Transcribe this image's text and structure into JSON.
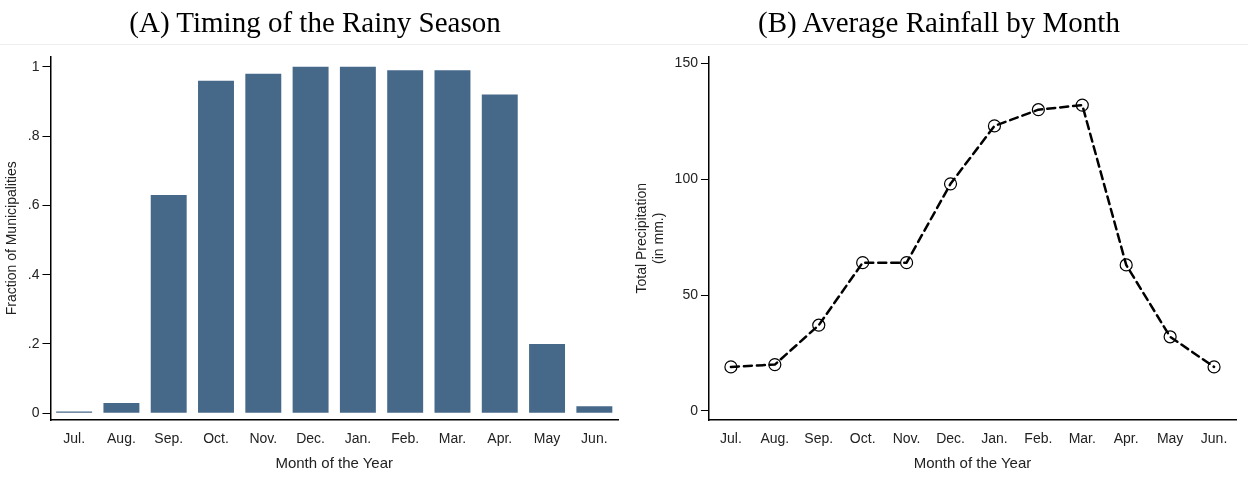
{
  "chart_data": [
    {
      "type": "bar",
      "title": "(A) Timing of the Rainy Season",
      "xlabel": "Month of the Year",
      "ylabel": "Fraction of Municipalities",
      "categories": [
        "Jul.",
        "Aug.",
        "Sep.",
        "Oct.",
        "Nov.",
        "Dec.",
        "Jan.",
        "Feb.",
        "Mar.",
        "Apr.",
        "May",
        "Jun."
      ],
      "values": [
        0.005,
        0.03,
        0.63,
        0.96,
        0.98,
        1,
        1,
        0.99,
        0.99,
        0.92,
        0.2,
        0.02
      ],
      "color": "#46698a",
      "ylim": [
        -0.02,
        1.03
      ],
      "yticks": [
        0,
        {
          "value": 0.2,
          "label": ".2"
        },
        {
          "value": 0.4,
          "label": ".4"
        },
        {
          "value": 0.6,
          "label": ".6"
        },
        {
          "value": 0.8,
          "label": ".8"
        },
        1
      ],
      "grid": false,
      "legend": false
    },
    {
      "type": "line",
      "title": "(B) Average Rainfall by Month",
      "xlabel": "Month of the Year",
      "ylabel": "Total Precipitation\n(in mm.)",
      "categories": [
        "Jul.",
        "Aug.",
        "Sep.",
        "Oct.",
        "Nov.",
        "Dec.",
        "Jan.",
        "Feb.",
        "Mar.",
        "Apr.",
        "May",
        "Jun."
      ],
      "values": [
        19,
        20,
        37,
        64,
        64,
        98,
        123,
        130,
        132,
        63,
        32,
        19
      ],
      "color": "#000000",
      "ylim": [
        -4,
        153
      ],
      "yticks": [
        0,
        50,
        100,
        150
      ],
      "grid": false,
      "legend": false,
      "marker": "circle",
      "line_style": "dashed"
    }
  ]
}
